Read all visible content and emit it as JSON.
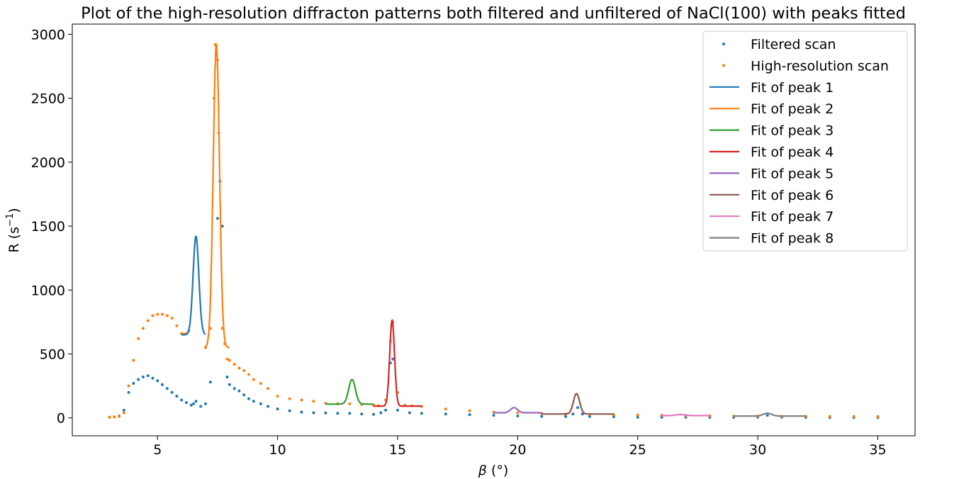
{
  "chart_data": {
    "type": "scatter",
    "title": "Plot of the high-resolution diffracton patterns both filtered and unfiltered of NaCl(100) with peaks fitted",
    "xlabel": {
      "symbol": "β",
      "unit": "(°)"
    },
    "ylabel": {
      "main": "R (s",
      "sup": "−1",
      "close": ")"
    },
    "xlim": [
      1.45,
      36.55
    ],
    "ylim": [
      -140,
      3080
    ],
    "x_ticks": [
      5,
      10,
      15,
      20,
      25,
      30,
      35
    ],
    "y_ticks": [
      0,
      500,
      1000,
      1500,
      2000,
      2500,
      3000
    ],
    "grid": false,
    "legend_position": "top-right",
    "colors": {
      "filtered": "#1f77b4",
      "high_resolution": "#ff7f0e",
      "fits": [
        "#1f77b4",
        "#ff7f0e",
        "#2ca02c",
        "#d62728",
        "#9467bd",
        "#8c564b",
        "#e377c2",
        "#7f7f7f"
      ]
    },
    "legend": [
      {
        "label": "Filtered scan",
        "kind": "marker",
        "color": "#1f77b4"
      },
      {
        "label": "High-resolution scan",
        "kind": "marker",
        "color": "#ff7f0e"
      },
      {
        "label": "Fit of peak 1",
        "kind": "line",
        "color": "#1f77b4"
      },
      {
        "label": "Fit of peak 2",
        "kind": "line",
        "color": "#ff7f0e"
      },
      {
        "label": "Fit of peak 3",
        "kind": "line",
        "color": "#2ca02c"
      },
      {
        "label": "Fit of peak 4",
        "kind": "line",
        "color": "#d62728"
      },
      {
        "label": "Fit of peak 5",
        "kind": "line",
        "color": "#9467bd"
      },
      {
        "label": "Fit of peak 6",
        "kind": "line",
        "color": "#8c564b"
      },
      {
        "label": "Fit of peak 7",
        "kind": "line",
        "color": "#e377c2"
      },
      {
        "label": "Fit of peak 8",
        "kind": "line",
        "color": "#7f7f7f"
      }
    ],
    "scatter_series": [
      {
        "name": "Filtered scan",
        "color": "#1f77b4",
        "points": [
          [
            3.0,
            5
          ],
          [
            3.2,
            8
          ],
          [
            3.4,
            15
          ],
          [
            3.6,
            60
          ],
          [
            3.8,
            200
          ],
          [
            4.0,
            270
          ],
          [
            4.2,
            300
          ],
          [
            4.4,
            320
          ],
          [
            4.6,
            330
          ],
          [
            4.8,
            310
          ],
          [
            5.0,
            290
          ],
          [
            5.2,
            260
          ],
          [
            5.4,
            230
          ],
          [
            5.6,
            200
          ],
          [
            5.8,
            170
          ],
          [
            6.0,
            140
          ],
          [
            6.2,
            120
          ],
          [
            6.4,
            100
          ],
          [
            6.5,
            110
          ],
          [
            6.6,
            130
          ],
          [
            6.8,
            90
          ],
          [
            7.0,
            110
          ],
          [
            7.2,
            280
          ],
          [
            7.5,
            1560
          ],
          [
            7.6,
            1850
          ],
          [
            7.7,
            1500
          ],
          [
            7.9,
            320
          ],
          [
            8.0,
            260
          ],
          [
            8.2,
            230
          ],
          [
            8.4,
            210
          ],
          [
            8.6,
            180
          ],
          [
            8.8,
            150
          ],
          [
            9.0,
            130
          ],
          [
            9.3,
            110
          ],
          [
            9.6,
            90
          ],
          [
            10.0,
            70
          ],
          [
            10.5,
            55
          ],
          [
            11.0,
            45
          ],
          [
            11.5,
            40
          ],
          [
            12.0,
            38
          ],
          [
            12.5,
            35
          ],
          [
            13.0,
            35
          ],
          [
            13.5,
            30
          ],
          [
            14.0,
            28
          ],
          [
            14.3,
            40
          ],
          [
            14.5,
            60
          ],
          [
            14.7,
            430
          ],
          [
            14.8,
            460
          ],
          [
            15.0,
            60
          ],
          [
            15.5,
            40
          ],
          [
            16.0,
            35
          ],
          [
            17.0,
            30
          ],
          [
            18.0,
            25
          ],
          [
            19.0,
            20
          ],
          [
            20.0,
            15
          ],
          [
            21.0,
            12
          ],
          [
            22.0,
            10
          ],
          [
            22.3,
            30
          ],
          [
            22.5,
            80
          ],
          [
            22.7,
            30
          ],
          [
            23.0,
            10
          ],
          [
            24.0,
            8
          ],
          [
            25.0,
            6
          ],
          [
            26.0,
            5
          ],
          [
            27.0,
            5
          ],
          [
            28.0,
            4
          ],
          [
            29.0,
            4
          ],
          [
            30.0,
            5
          ],
          [
            30.4,
            20
          ],
          [
            31.0,
            5
          ],
          [
            32.0,
            4
          ],
          [
            33.0,
            3
          ],
          [
            34.0,
            3
          ],
          [
            35.0,
            3
          ]
        ]
      },
      {
        "name": "High-resolution scan",
        "color": "#ff7f0e",
        "points": [
          [
            3.0,
            5
          ],
          [
            3.2,
            8
          ],
          [
            3.4,
            12
          ],
          [
            3.6,
            40
          ],
          [
            3.8,
            250
          ],
          [
            4.0,
            450
          ],
          [
            4.2,
            620
          ],
          [
            4.4,
            700
          ],
          [
            4.6,
            760
          ],
          [
            4.8,
            800
          ],
          [
            5.0,
            810
          ],
          [
            5.2,
            810
          ],
          [
            5.4,
            800
          ],
          [
            5.6,
            780
          ],
          [
            5.8,
            720
          ],
          [
            6.0,
            660
          ],
          [
            6.1,
            655
          ],
          [
            6.2,
            660
          ],
          [
            6.3,
            680
          ],
          [
            7.0,
            550
          ],
          [
            7.2,
            700
          ],
          [
            7.35,
            2500
          ],
          [
            7.4,
            2920
          ],
          [
            7.5,
            2800
          ],
          [
            7.55,
            2230
          ],
          [
            7.7,
            700
          ],
          [
            7.8,
            580
          ],
          [
            7.9,
            460
          ],
          [
            8.0,
            450
          ],
          [
            8.2,
            420
          ],
          [
            8.4,
            390
          ],
          [
            8.6,
            370
          ],
          [
            8.8,
            340
          ],
          [
            9.0,
            300
          ],
          [
            9.3,
            270
          ],
          [
            9.6,
            230
          ],
          [
            10.0,
            170
          ],
          [
            10.5,
            150
          ],
          [
            11.0,
            140
          ],
          [
            11.5,
            130
          ],
          [
            12.0,
            115
          ],
          [
            12.5,
            110
          ],
          [
            13.0,
            110
          ],
          [
            13.5,
            105
          ],
          [
            14.0,
            100
          ],
          [
            14.2,
            95
          ],
          [
            14.5,
            140
          ],
          [
            14.7,
            600
          ],
          [
            14.8,
            750
          ],
          [
            15.0,
            200
          ],
          [
            15.3,
            100
          ],
          [
            15.6,
            95
          ],
          [
            16.0,
            90
          ],
          [
            17.0,
            70
          ],
          [
            18.0,
            55
          ],
          [
            19.0,
            45
          ],
          [
            20.0,
            40
          ],
          [
            21.0,
            35
          ],
          [
            22.0,
            30
          ],
          [
            23.0,
            28
          ],
          [
            24.0,
            25
          ],
          [
            25.0,
            22
          ],
          [
            26.0,
            20
          ],
          [
            27.0,
            18
          ],
          [
            28.0,
            16
          ],
          [
            29.0,
            14
          ],
          [
            30.0,
            14
          ],
          [
            31.0,
            12
          ],
          [
            32.0,
            12
          ],
          [
            33.0,
            11
          ],
          [
            34.0,
            10
          ],
          [
            35.0,
            10
          ]
        ]
      }
    ],
    "fit_series": [
      {
        "name": "Fit of peak 1",
        "color": "#1f77b4",
        "x_range": [
          6.0,
          7.0
        ],
        "base": 650,
        "amp": 770,
        "center": 6.6,
        "sigma": 0.12
      },
      {
        "name": "Fit of peak 2",
        "color": "#ff7f0e",
        "x_range": [
          7.0,
          8.0
        ],
        "base": 550,
        "amp": 2370,
        "center": 7.45,
        "sigma": 0.13
      },
      {
        "name": "Fit of peak 3",
        "color": "#2ca02c",
        "x_range": [
          12.0,
          14.0
        ],
        "base": 108,
        "amp": 192,
        "center": 13.1,
        "sigma": 0.14
      },
      {
        "name": "Fit of peak 4",
        "color": "#d62728",
        "x_range": [
          14.0,
          16.0
        ],
        "base": 92,
        "amp": 672,
        "center": 14.77,
        "sigma": 0.1
      },
      {
        "name": "Fit of peak 5",
        "color": "#9467bd",
        "x_range": [
          19.0,
          21.0
        ],
        "base": 40,
        "amp": 40,
        "center": 19.85,
        "sigma": 0.15
      },
      {
        "name": "Fit of peak 6",
        "color": "#8c564b",
        "x_range": [
          21.0,
          24.0
        ],
        "base": 30,
        "amp": 160,
        "center": 22.45,
        "sigma": 0.13
      },
      {
        "name": "Fit of peak 7",
        "color": "#e377c2",
        "x_range": [
          26.0,
          28.0
        ],
        "base": 18,
        "amp": 8,
        "center": 26.8,
        "sigma": 0.2
      },
      {
        "name": "Fit of peak 8",
        "color": "#7f7f7f",
        "x_range": [
          29.0,
          32.0
        ],
        "base": 14,
        "amp": 22,
        "center": 30.4,
        "sigma": 0.18
      }
    ]
  }
}
